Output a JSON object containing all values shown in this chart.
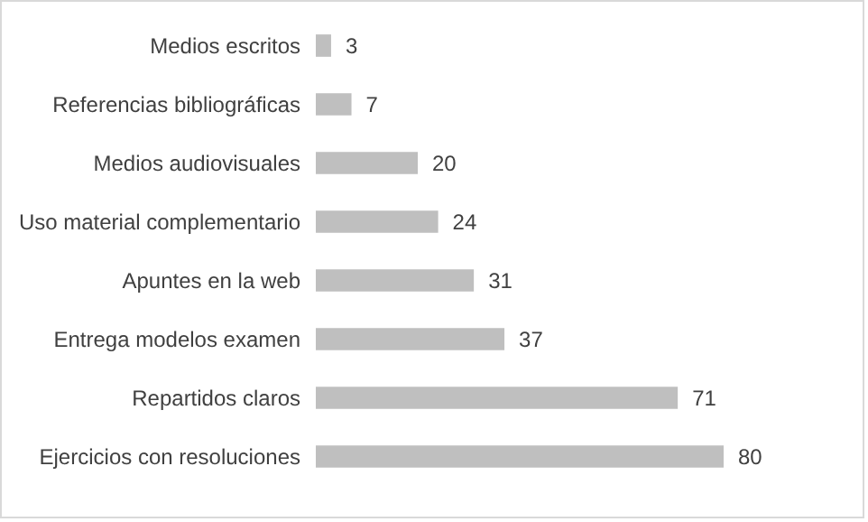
{
  "chart_data": {
    "type": "bar",
    "orientation": "horizontal",
    "categories": [
      "Medios escritos",
      "Referencias bibliográficas",
      "Medios audiovisuales",
      "Uso material complementario",
      "Apuntes en la web",
      "Entrega modelos examen",
      "Repartidos claros",
      "Ejercicios con resoluciones"
    ],
    "values": [
      3,
      7,
      20,
      24,
      31,
      37,
      71,
      80
    ],
    "color": "#bfbfbf",
    "data_labels": true
  }
}
